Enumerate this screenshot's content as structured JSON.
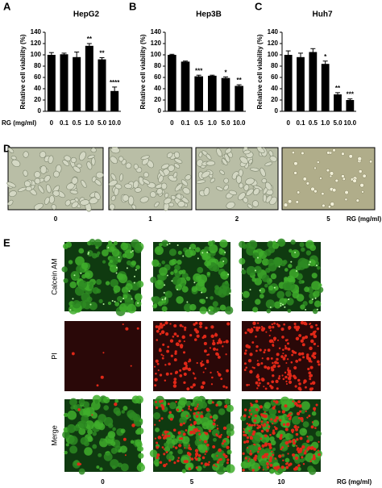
{
  "panel_labels": [
    "A",
    "B",
    "C",
    "D",
    "E"
  ],
  "chart_data": [
    {
      "type": "bar",
      "title": "HepG2",
      "y_label": "Relative cell viability (%)",
      "x_label": "RG (mg/ml)",
      "categories": [
        "0",
        "0.1",
        "0.5",
        "1.0",
        "5.0",
        "10.0"
      ],
      "values": [
        100,
        101,
        96,
        116,
        92,
        36
      ],
      "errors": [
        4,
        2,
        9,
        4,
        3,
        7
      ],
      "significance": [
        null,
        null,
        null,
        "**",
        "**",
        "****"
      ],
      "color": "#000000",
      "ylim": [
        0,
        140
      ],
      "yticks": [
        0,
        20,
        40,
        60,
        80,
        100,
        120,
        140
      ]
    },
    {
      "type": "bar",
      "title": "Hep3B",
      "y_label": "Relative cell viability (%)",
      "categories": [
        "0",
        "0.1",
        "0.5",
        "1.0",
        "5.0",
        "10.0"
      ],
      "values": [
        100,
        88,
        62,
        63,
        59,
        45
      ],
      "errors": [
        1,
        1,
        2,
        1,
        2,
        2
      ],
      "significance": [
        null,
        null,
        "***",
        null,
        "*",
        "**"
      ],
      "color": "#000000",
      "ylim": [
        0,
        140
      ],
      "yticks": [
        0,
        20,
        40,
        60,
        80,
        100,
        120,
        140
      ]
    },
    {
      "type": "bar",
      "title": "Huh7",
      "y_label": "Relative cell viability (%)",
      "categories": [
        "0",
        "0.1",
        "0.5",
        "1.0",
        "5.0",
        "10.0"
      ],
      "values": [
        100,
        96,
        105,
        84,
        30,
        20
      ],
      "errors": [
        7,
        7,
        6,
        5,
        3,
        2
      ],
      "significance": [
        null,
        null,
        null,
        "*",
        "**",
        "***"
      ],
      "color": "#000000",
      "ylim": [
        0,
        140
      ],
      "yticks": [
        0,
        20,
        40,
        60,
        80,
        100,
        120,
        140
      ]
    }
  ],
  "panel_d": {
    "labels": [
      "0",
      "1",
      "2",
      "5"
    ],
    "unit_label": "RG (mg/ml)"
  },
  "panel_e": {
    "rows": [
      "Calcein AM",
      "PI",
      "Merge"
    ],
    "columns": [
      "0",
      "5",
      "10"
    ],
    "unit_label": "RG (mg/ml)"
  }
}
